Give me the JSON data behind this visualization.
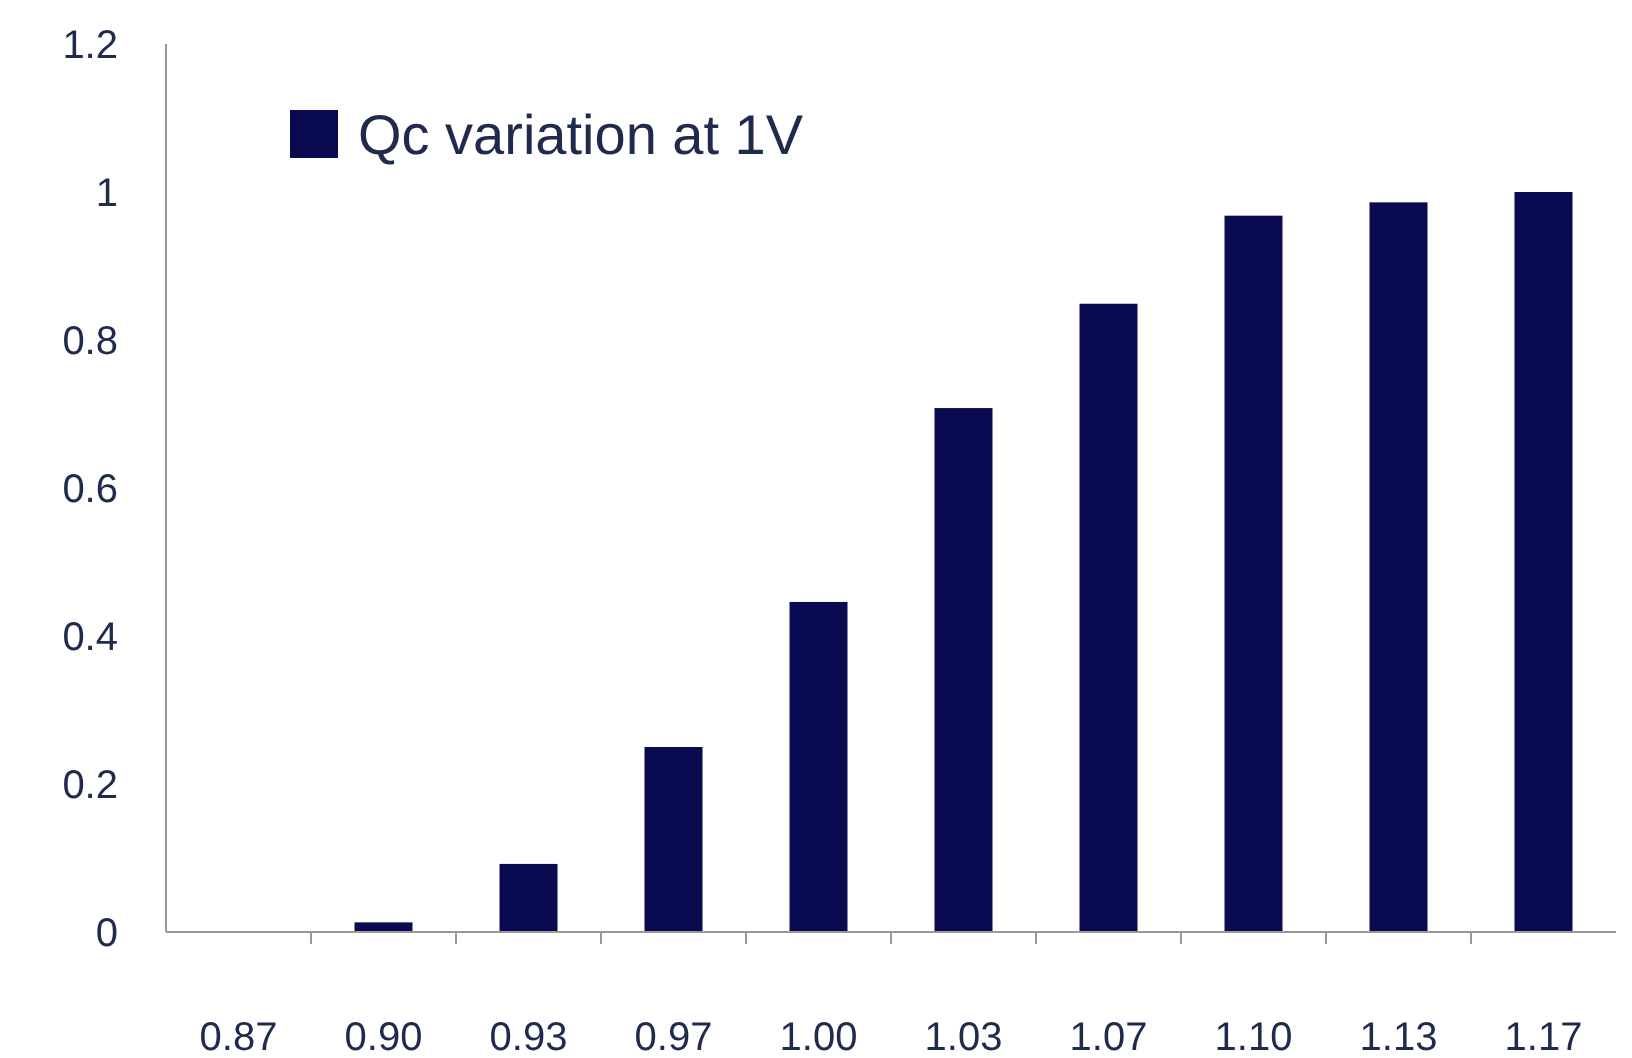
{
  "chart_data": {
    "type": "bar",
    "categories": [
      "0.87",
      "0.90",
      "0.93",
      "0.97",
      "1.00",
      "1.03",
      "1.07",
      "1.10",
      "1.13",
      "1.17"
    ],
    "series": [
      {
        "name": "Qc variation at 1V",
        "color": "#0a0a50",
        "values": [
          0,
          0.013,
          0.092,
          0.25,
          0.446,
          0.708,
          0.849,
          0.968,
          0.986,
          1.0
        ]
      }
    ],
    "ylim": [
      0,
      1.2
    ],
    "yticks": [
      0,
      0.2,
      0.4,
      0.6,
      0.8,
      1,
      1.2
    ],
    "grid": false,
    "legend": "top left"
  }
}
